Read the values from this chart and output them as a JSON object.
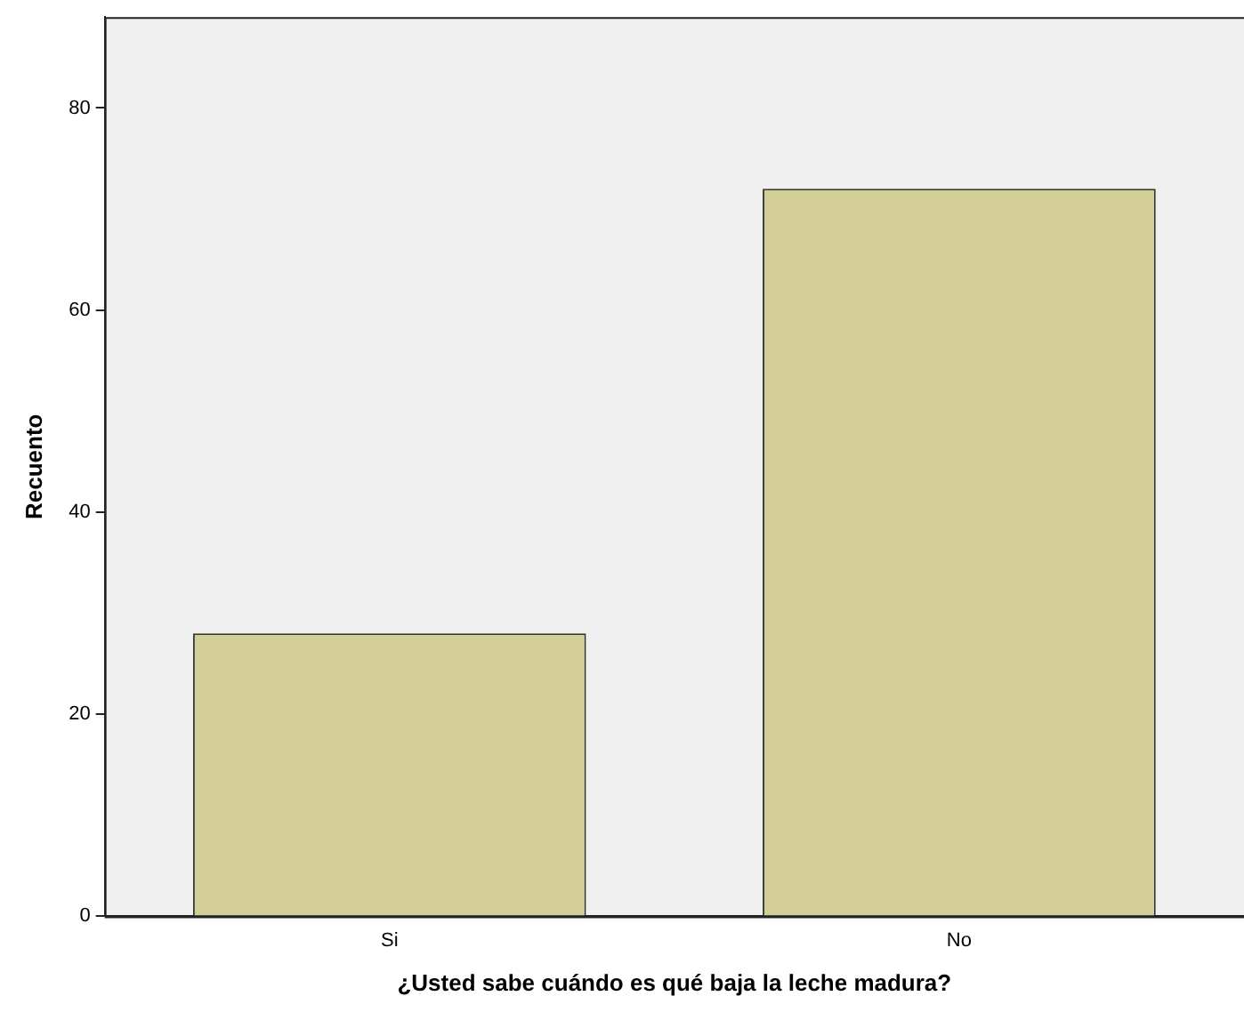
{
  "chart_data": {
    "type": "bar",
    "xlabel": "¿Usted sabe cuándo es qué baja la leche madura?",
    "ylabel": "Recuento",
    "categories": [
      "Si",
      "No"
    ],
    "values": [
      28,
      72
    ],
    "color": "#d3ce98",
    "ylim": [
      0,
      89
    ],
    "yticks": [
      0,
      20,
      40,
      60,
      80
    ],
    "grid": false,
    "legend": false
  }
}
